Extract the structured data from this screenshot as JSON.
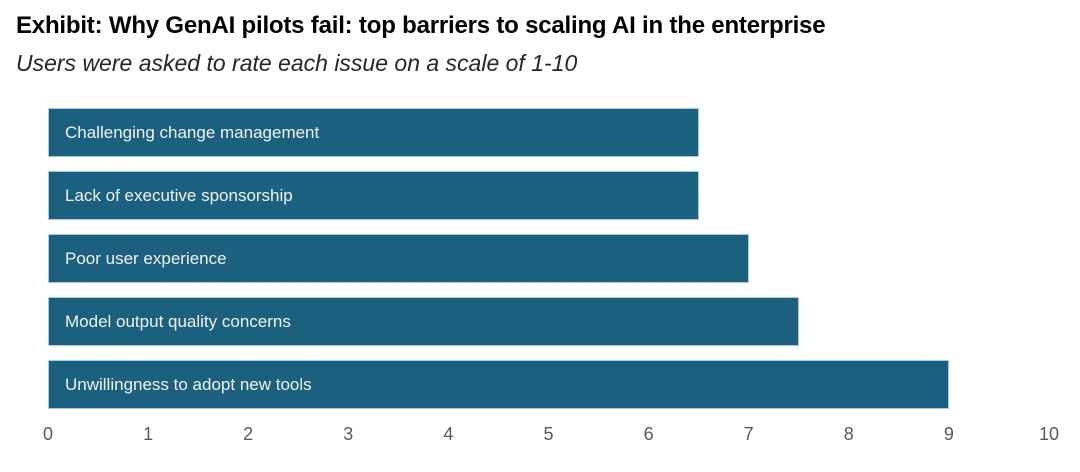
{
  "chart_data": {
    "type": "bar",
    "orientation": "horizontal",
    "title": "Exhibit: Why GenAI pilots fail: top barriers to scaling AI in the enterprise",
    "subtitle": "Users were asked to rate each issue on a scale of 1-10",
    "categories": [
      "Challenging change management",
      "Lack of executive sponsorship",
      "Poor user experience",
      "Model output quality concerns",
      "Unwillingness to adopt new tools"
    ],
    "values": [
      6.5,
      6.5,
      7,
      7.5,
      9
    ],
    "xlabel": "",
    "ylabel": "",
    "xlim": [
      0,
      10
    ],
    "x_ticks": [
      0,
      1,
      2,
      3,
      4,
      5,
      6,
      7,
      8,
      9,
      10
    ],
    "grid": false,
    "legend": false,
    "bar_labels_inside": true
  },
  "colors": {
    "background": "#FFFFFF",
    "title": "#000000",
    "subtitle": "#262626",
    "bar": "#1B607E",
    "bar_border": "#AECBDA",
    "bar_label": "#F2F2F2",
    "axis_label": "#595959"
  }
}
